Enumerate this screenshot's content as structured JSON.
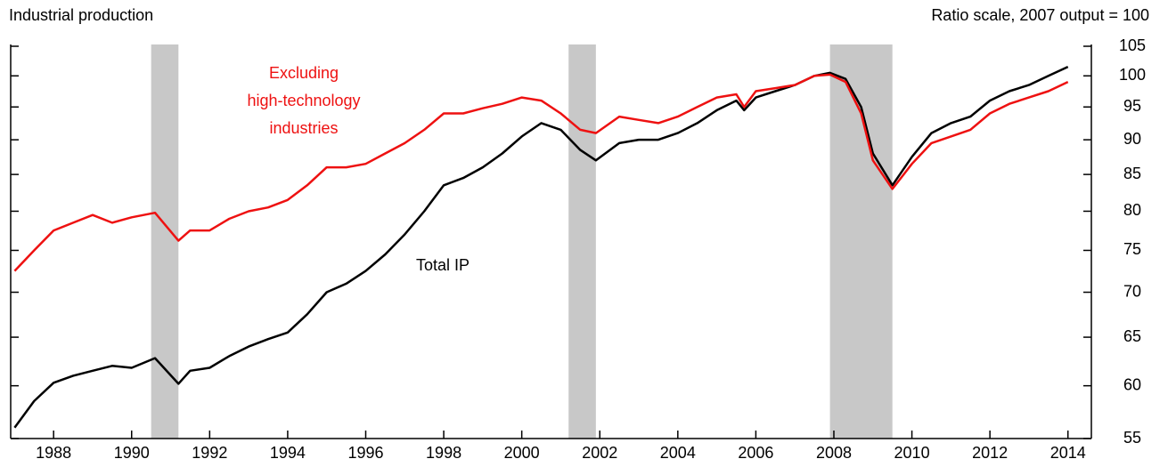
{
  "chart_data": {
    "type": "line",
    "title": "Industrial production",
    "subtitle": "Ratio scale, 2007 output = 100",
    "log_scale": true,
    "x": [
      1987.0,
      1987.5,
      1988.0,
      1988.5,
      1989.0,
      1989.5,
      1990.0,
      1990.6,
      1991.2,
      1991.5,
      1992.0,
      1992.5,
      1993.0,
      1993.5,
      1994.0,
      1994.5,
      1995.0,
      1995.5,
      1996.0,
      1996.5,
      1997.0,
      1997.5,
      1998.0,
      1998.5,
      1999.0,
      1999.5,
      2000.0,
      2000.5,
      2001.0,
      2001.5,
      2001.9,
      2002.5,
      2003.0,
      2003.5,
      2004.0,
      2004.5,
      2005.0,
      2005.5,
      2005.7,
      2006.0,
      2006.5,
      2007.0,
      2007.5,
      2007.9,
      2008.3,
      2008.7,
      2009.0,
      2009.5,
      2010.0,
      2010.5,
      2011.0,
      2011.5,
      2012.0,
      2012.5,
      2013.0,
      2013.5,
      2014.0
    ],
    "series": [
      {
        "name": "Total IP",
        "color": "#000000",
        "values": [
          56,
          58.5,
          60.3,
          61,
          61.5,
          62,
          61.8,
          62.8,
          60.2,
          61.5,
          61.8,
          63,
          64,
          64.8,
          65.5,
          67.5,
          70,
          71,
          72.5,
          74.5,
          77,
          80,
          83.5,
          84.5,
          86,
          88,
          90.5,
          92.5,
          91.5,
          88.5,
          87,
          89.5,
          90,
          90,
          91,
          92.5,
          94.5,
          96,
          94.5,
          96.5,
          97.5,
          98.5,
          100,
          100.5,
          99.5,
          95,
          88,
          83.5,
          87.5,
          91,
          92.5,
          93.5,
          96,
          97.5,
          98.5,
          100,
          101.5
        ]
      },
      {
        "name": "Excluding high-technology industries",
        "color": "#ee1111",
        "values": [
          72.5,
          75,
          77.5,
          78.5,
          79.5,
          78.5,
          79.2,
          79.8,
          76.2,
          77.5,
          77.5,
          79,
          80,
          80.5,
          81.5,
          83.5,
          86,
          86,
          86.5,
          88,
          89.5,
          91.5,
          94,
          94,
          94.8,
          95.5,
          96.5,
          96,
          94,
          91.5,
          91,
          93.5,
          93,
          92.5,
          93.5,
          95,
          96.5,
          97,
          95,
          97.5,
          98,
          98.5,
          100,
          100.2,
          99,
          94,
          87,
          83,
          86.5,
          89.5,
          90.5,
          91.5,
          94,
          95.5,
          96.5,
          97.5,
          99
        ]
      }
    ],
    "annotations": {
      "total": "Total IP",
      "excluding": [
        "Excluding",
        "high-technology",
        "industries"
      ]
    },
    "recessions": [
      [
        1990.5,
        1991.2
      ],
      [
        2001.2,
        2001.9
      ],
      [
        2007.9,
        2009.5
      ]
    ],
    "recession_color": "#c8c8c8",
    "xlim": [
      1986.9,
      2014.6
    ],
    "xticks": [
      1988,
      1990,
      1992,
      1994,
      1996,
      1998,
      2000,
      2002,
      2004,
      2006,
      2008,
      2010,
      2012,
      2014
    ],
    "ylim": [
      55,
      105
    ],
    "yticks": [
      55,
      60,
      65,
      70,
      75,
      80,
      85,
      90,
      95,
      100,
      105
    ]
  }
}
